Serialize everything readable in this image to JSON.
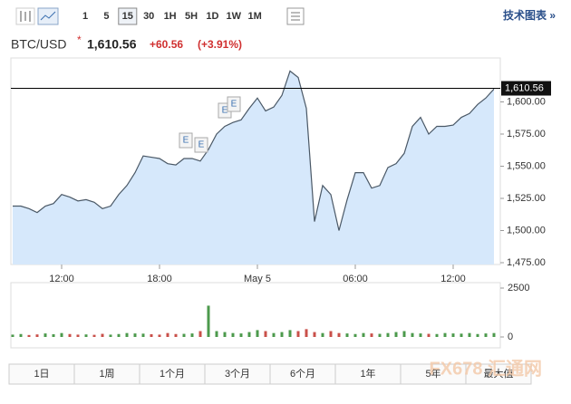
{
  "toolbar": {
    "intervals": [
      "1",
      "5",
      "15",
      "30",
      "1H",
      "5H",
      "1D",
      "1W",
      "1M"
    ],
    "selected_interval": 2,
    "link": "技术图表 »"
  },
  "header": {
    "symbol": "BTC/USD",
    "marker": "*",
    "price": "1,610.56",
    "change": "+60.56",
    "change_pct": "(+3.91%)"
  },
  "chart_data": [
    {
      "type": "area",
      "color": "#4a5866",
      "fill": "#d6e8fb",
      "values": [
        1519,
        1519,
        1517,
        1514,
        1519,
        1521,
        1528,
        1526,
        1523,
        1524,
        1522,
        1517,
        1519,
        1528,
        1535,
        1545,
        1558,
        1557,
        1556,
        1552,
        1551,
        1556,
        1556,
        1554,
        1563,
        1575,
        1581,
        1584,
        1586,
        1595,
        1603,
        1593,
        1596,
        1605,
        1624,
        1619,
        1595,
        1507,
        1535,
        1528,
        1500,
        1524,
        1545,
        1545,
        1533,
        1535,
        1549,
        1552,
        1560,
        1581,
        1588,
        1575,
        1581,
        1581,
        1582,
        1588,
        1591,
        1598,
        1603,
        1610
      ],
      "ylim": [
        1475,
        1633
      ],
      "yticks": [
        {
          "value": 1475,
          "label": "1,475.00"
        },
        {
          "value": 1500,
          "label": "1,500.00"
        },
        {
          "value": 1525,
          "label": "1,525.00"
        },
        {
          "value": 1550,
          "label": "1,550.00"
        },
        {
          "value": 1575,
          "label": "1,575.00"
        },
        {
          "value": 1600,
          "label": "1,600.00"
        }
      ],
      "xticks": [
        {
          "value": 6,
          "label": "12:00"
        },
        {
          "value": 18,
          "label": "18:00"
        },
        {
          "value": 30,
          "label": "May 5"
        },
        {
          "value": 42,
          "label": "06:00"
        },
        {
          "value": 54,
          "label": "12:00"
        }
      ],
      "price_line": {
        "value": 1610.56,
        "label": "1,610.56"
      },
      "events": [
        "E",
        "E",
        "E",
        "E"
      ]
    },
    {
      "type": "bar",
      "up_color": "#4c9a4c",
      "down_color": "#c9504a",
      "values": [
        120,
        150,
        100,
        130,
        180,
        140,
        200,
        150,
        120,
        130,
        110,
        160,
        120,
        150,
        200,
        180,
        170,
        140,
        120,
        200,
        150,
        160,
        180,
        300,
        1600,
        300,
        250,
        200,
        180,
        250,
        350,
        300,
        200,
        250,
        350,
        300,
        400,
        250,
        200,
        300,
        200,
        180,
        150,
        200,
        180,
        160,
        200,
        250,
        300,
        200,
        180,
        160,
        150,
        200,
        180,
        170,
        200,
        150,
        180,
        200
      ],
      "ylim": [
        0,
        2500
      ],
      "yticks": [
        0,
        2500
      ]
    }
  ],
  "ranges": [
    "1日",
    "1周",
    "1个月",
    "3个月",
    "6个月",
    "1年",
    "5年",
    "最大值"
  ],
  "watermark": "FX678 汇通网"
}
